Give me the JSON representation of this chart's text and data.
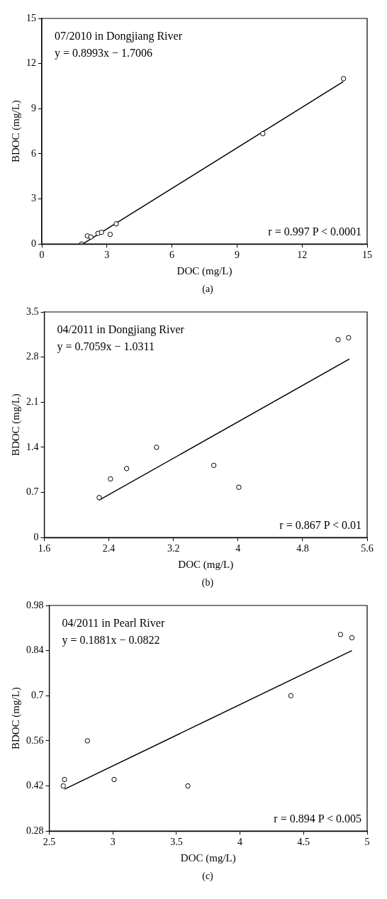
{
  "chart_data": [
    {
      "type": "scatter",
      "title": "07/2010 in Dongjiang River",
      "xlabel": "DOC (mg/L)",
      "ylabel": "BDOC (mg/L)",
      "xlim": [
        0,
        15
      ],
      "xticks": [
        0,
        3,
        6,
        9,
        12,
        15
      ],
      "ylim": [
        0,
        15
      ],
      "yticks": [
        0,
        3,
        6,
        9,
        12,
        15
      ],
      "grid": false,
      "legend": false,
      "marker": "circle",
      "annotations": [
        "y = 0.8993x − 1.7006",
        "r = 0.997 P < 0.0001",
        "(a)"
      ],
      "series": [
        {
          "type": "scatter",
          "color": "#000000",
          "x": [
            1.84,
            2.1,
            2.26,
            2.59,
            2.75,
            3.15,
            3.43,
            10.19,
            13.91
          ],
          "values": [
            0,
            0.54,
            0.47,
            0.71,
            0.78,
            0.64,
            1.34,
            7.34,
            11.0
          ]
        },
        {
          "type": "line",
          "color": "#000000",
          "marker": "none",
          "line_style": "solid",
          "x": [
            1.9,
            13.9
          ],
          "values": [
            0.01,
            10.8
          ]
        }
      ]
    },
    {
      "type": "scatter",
      "title": "04/2011 in Dongjiang River",
      "xlabel": "DOC (mg/L)",
      "ylabel": "BDOC (mg/L)",
      "xlim": [
        1.6,
        5.6
      ],
      "xticks": [
        1.6,
        2.4,
        3.2,
        4,
        4.8,
        5.6
      ],
      "ylim": [
        0,
        3.5
      ],
      "yticks": [
        0,
        0.7,
        1.4,
        2.1,
        2.8,
        3.5
      ],
      "grid": false,
      "legend": false,
      "marker": "circle",
      "annotations": [
        "y = 0.7059x − 1.0311",
        "r = 0.867 P < 0.01",
        "(b)"
      ],
      "series": [
        {
          "type": "scatter",
          "color": "#000000",
          "x": [
            2.28,
            2.42,
            2.62,
            2.99,
            3.7,
            4.01,
            5.24,
            5.37
          ],
          "values": [
            0.62,
            0.91,
            1.07,
            1.4,
            1.12,
            0.78,
            3.07,
            3.1
          ]
        },
        {
          "type": "line",
          "color": "#000000",
          "marker": "none",
          "line_style": "solid",
          "x": [
            2.28,
            5.38
          ],
          "values": [
            0.58,
            2.77
          ]
        }
      ]
    },
    {
      "type": "scatter",
      "title": "04/2011 in Pearl River",
      "xlabel": "DOC (mg/L)",
      "ylabel": "BDOC (mg/L)",
      "xlim": [
        2.5,
        5
      ],
      "xticks": [
        2.5,
        3,
        3.5,
        4,
        4.5,
        5
      ],
      "ylim": [
        0.28,
        0.98
      ],
      "yticks": [
        0.28,
        0.42,
        0.56,
        0.7,
        0.84,
        0.98
      ],
      "grid": false,
      "legend": false,
      "marker": "circle",
      "annotations": [
        "y = 0.1881x − 0.0822",
        "r = 0.894 P < 0.005",
        "(c)"
      ],
      "series": [
        {
          "type": "scatter",
          "color": "#000000",
          "x": [
            2.61,
            2.62,
            2.8,
            3.01,
            3.59,
            4.4,
            4.79,
            4.88
          ],
          "values": [
            0.42,
            0.44,
            0.56,
            0.44,
            0.42,
            0.7,
            0.89,
            0.88
          ]
        },
        {
          "type": "line",
          "color": "#000000",
          "marker": "none",
          "line_style": "solid",
          "x": [
            2.62,
            4.88
          ],
          "values": [
            0.41,
            0.84
          ]
        }
      ]
    }
  ]
}
